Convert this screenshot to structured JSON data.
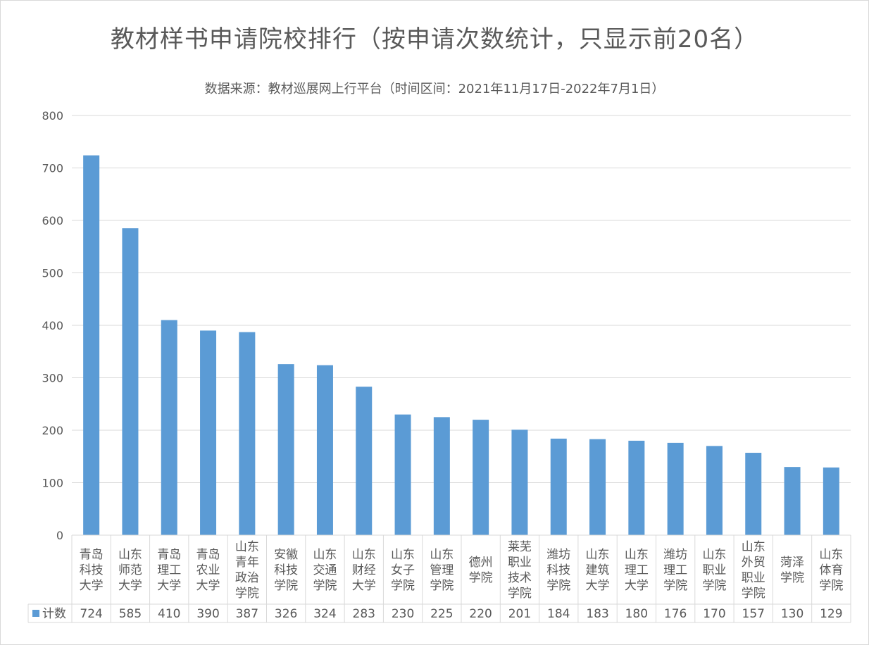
{
  "chart_data": {
    "type": "bar",
    "title": "教材样书申请院校排行（按申请次数统计，只显示前20名）",
    "subtitle": "数据来源：教材巡展网上行平台（时间区间：2021年11月17日-2022年7月1日）",
    "categories": [
      "青岛科技大学",
      "山东师范大学",
      "青岛理工大学",
      "青岛农业大学",
      "山东青年政治学院",
      "安徽科技学院",
      "山东交通学院",
      "山东财经大学",
      "山东女子学院",
      "山东管理学院",
      "德州学院",
      "莱芜职业技术学院",
      "潍坊科技学院",
      "山东建筑大学",
      "山东理工大学",
      "潍坊理工学院",
      "山东职业学院",
      "山东外贸职业学院",
      "菏泽学院",
      "山东体育学院"
    ],
    "category_lines": [
      [
        "青岛",
        "科技",
        "大学"
      ],
      [
        "山东",
        "师范",
        "大学"
      ],
      [
        "青岛",
        "理工",
        "大学"
      ],
      [
        "青岛",
        "农业",
        "大学"
      ],
      [
        "山东",
        "青年",
        "政治",
        "学院"
      ],
      [
        "安徽",
        "科技",
        "学院"
      ],
      [
        "山东",
        "交通",
        "学院"
      ],
      [
        "山东",
        "财经",
        "大学"
      ],
      [
        "山东",
        "女子",
        "学院"
      ],
      [
        "山东",
        "管理",
        "学院"
      ],
      [
        "德州",
        "学院"
      ],
      [
        "莱芜",
        "职业",
        "技术",
        "学院"
      ],
      [
        "潍坊",
        "科技",
        "学院"
      ],
      [
        "山东",
        "建筑",
        "大学"
      ],
      [
        "山东",
        "理工",
        "大学"
      ],
      [
        "潍坊",
        "理工",
        "学院"
      ],
      [
        "山东",
        "职业",
        "学院"
      ],
      [
        "山东",
        "外贸",
        "职业",
        "学院"
      ],
      [
        "菏泽",
        "学院"
      ],
      [
        "山东",
        "体育",
        "学院"
      ]
    ],
    "series": [
      {
        "name": "计数",
        "values": [
          724,
          585,
          410,
          390,
          387,
          326,
          324,
          283,
          230,
          225,
          220,
          201,
          184,
          183,
          180,
          176,
          170,
          157,
          130,
          129
        ]
      }
    ],
    "ylim": [
      0,
      800
    ],
    "yticks": [
      0,
      100,
      200,
      300,
      400,
      500,
      600,
      700,
      800
    ],
    "grid": true,
    "data_table": true,
    "bar_color": "#5b9bd5"
  }
}
